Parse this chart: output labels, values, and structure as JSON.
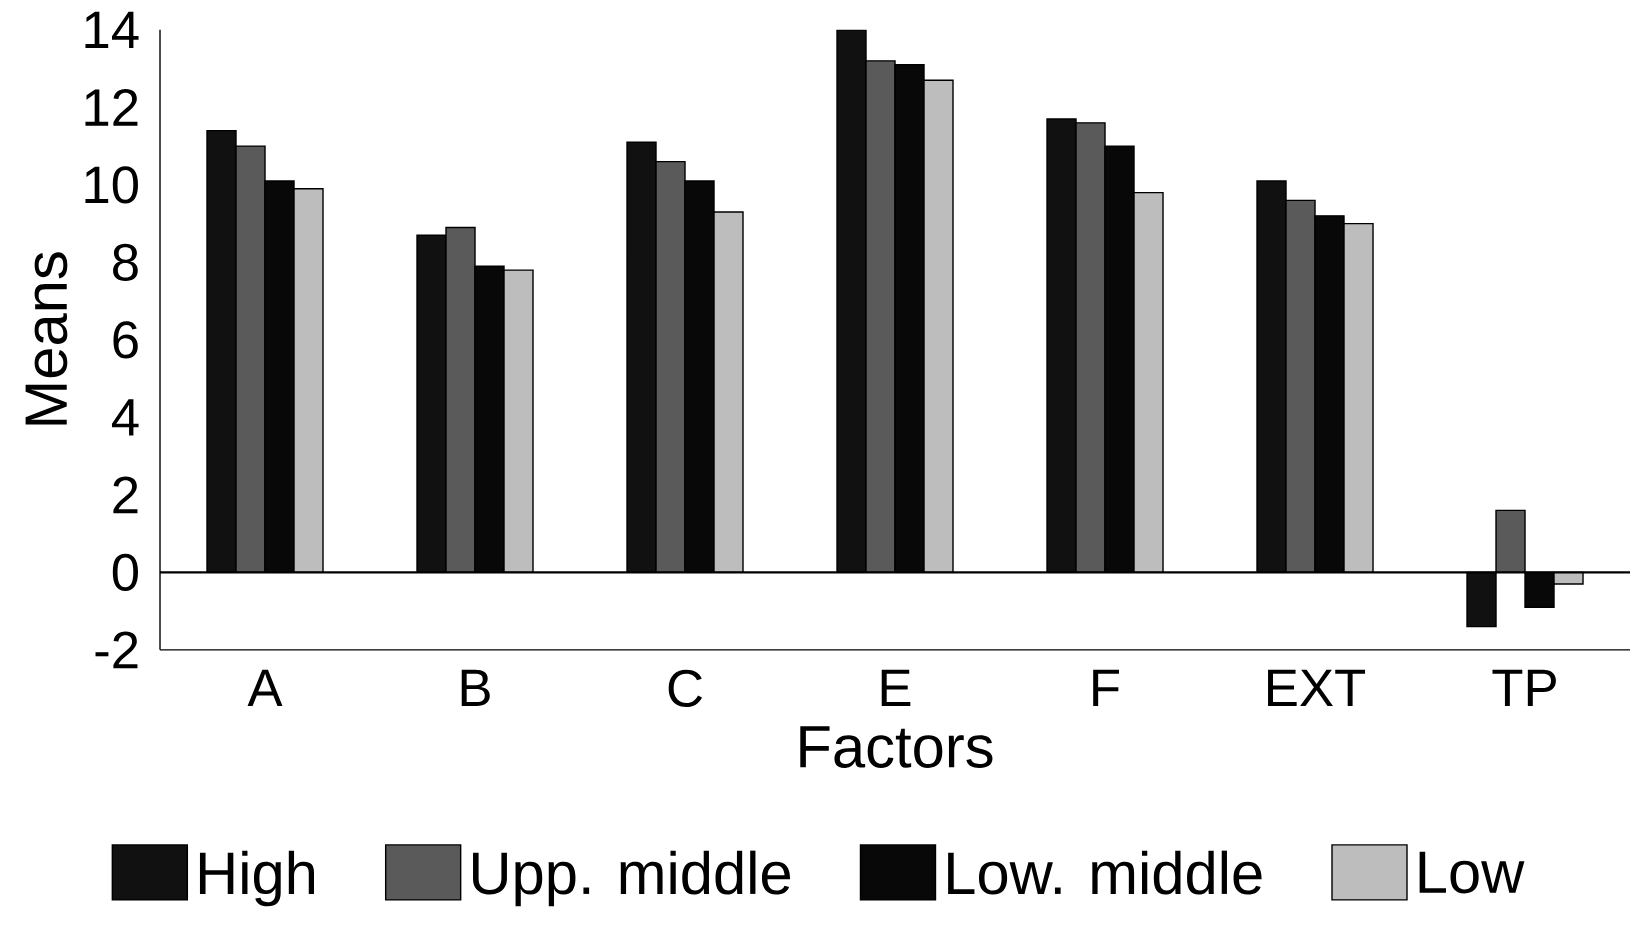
{
  "chart_data": {
    "type": "bar",
    "xlabel": "Factors",
    "ylabel": "Means",
    "categories": [
      "A",
      "B",
      "C",
      "E",
      "F",
      "EXT",
      "TP"
    ],
    "series": [
      {
        "name": "High",
        "color": "#111111",
        "values": [
          11.4,
          8.7,
          11.1,
          14.0,
          11.7,
          10.1,
          -1.4
        ]
      },
      {
        "name": "Upp. middle",
        "color": "#5a5a5a",
        "values": [
          11.0,
          8.9,
          10.6,
          13.2,
          11.6,
          9.6,
          1.6
        ]
      },
      {
        "name": "Low. middle",
        "color": "#080808",
        "values": [
          10.1,
          7.9,
          10.1,
          13.1,
          11.0,
          9.2,
          -0.9
        ]
      },
      {
        "name": "Low",
        "color": "#bdbdbd",
        "values": [
          9.9,
          7.8,
          9.3,
          12.7,
          9.8,
          9.0,
          -0.3
        ]
      }
    ],
    "ylim": [
      -2,
      14
    ],
    "yticks": [
      -2,
      0,
      2,
      4,
      6,
      8,
      10,
      12,
      14
    ],
    "ref_lines": [
      {
        "axis": "y",
        "value": 0
      }
    ],
    "grid": false,
    "legend": "bottom"
  }
}
